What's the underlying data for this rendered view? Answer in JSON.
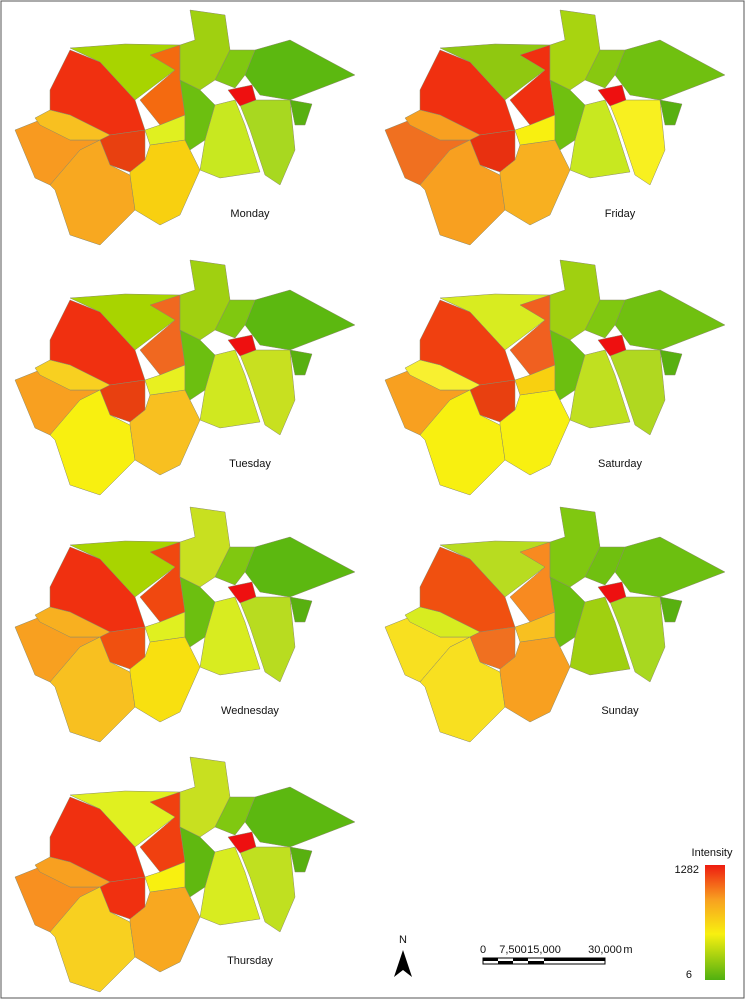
{
  "maps": [
    {
      "label": "Monday"
    },
    {
      "label": "Friday"
    },
    {
      "label": "Tuesday"
    },
    {
      "label": "Saturday"
    },
    {
      "label": "Wednesday"
    },
    {
      "label": "Sunday"
    },
    {
      "label": "Thursday"
    }
  ],
  "legend": {
    "title": "Intensity",
    "max_label": "1282",
    "min_label": "6"
  },
  "north_arrow": "N",
  "scale_bar": {
    "ticks": [
      "0",
      "7,500",
      "15,000",
      "30,000"
    ],
    "unit": "m"
  }
}
